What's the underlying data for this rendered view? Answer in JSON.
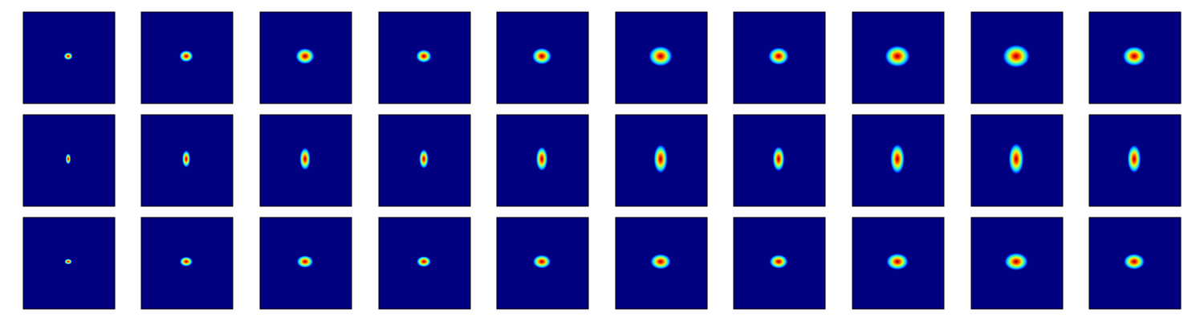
{
  "figure": {
    "rows": 3,
    "cols": 10,
    "colormap": "jet",
    "background_color": "#000080",
    "frame_color": "#000000",
    "blobs": [
      [
        {
          "size": 0.35,
          "shape": "round"
        },
        {
          "size": 0.55,
          "shape": "round"
        },
        {
          "size": 0.75,
          "shape": "round"
        },
        {
          "size": 0.62,
          "shape": "round"
        },
        {
          "size": 0.78,
          "shape": "round"
        },
        {
          "size": 0.95,
          "shape": "round"
        },
        {
          "size": 0.82,
          "shape": "round"
        },
        {
          "size": 1.0,
          "shape": "round"
        },
        {
          "size": 1.08,
          "shape": "round"
        },
        {
          "size": 0.92,
          "shape": "round"
        }
      ],
      [
        {
          "size": 0.35,
          "shape": "vertical"
        },
        {
          "size": 0.55,
          "shape": "vertical"
        },
        {
          "size": 0.72,
          "shape": "vertical"
        },
        {
          "size": 0.62,
          "shape": "vertical"
        },
        {
          "size": 0.78,
          "shape": "vertical"
        },
        {
          "size": 0.92,
          "shape": "vertical"
        },
        {
          "size": 0.8,
          "shape": "vertical"
        },
        {
          "size": 0.95,
          "shape": "vertical"
        },
        {
          "size": 1.0,
          "shape": "vertical"
        },
        {
          "size": 0.9,
          "shape": "vertical"
        }
      ],
      [
        {
          "size": 0.3,
          "shape": "flat"
        },
        {
          "size": 0.52,
          "shape": "flat"
        },
        {
          "size": 0.66,
          "shape": "flat"
        },
        {
          "size": 0.58,
          "shape": "flat"
        },
        {
          "size": 0.72,
          "shape": "flat"
        },
        {
          "size": 0.82,
          "shape": "flat"
        },
        {
          "size": 0.74,
          "shape": "flat"
        },
        {
          "size": 0.88,
          "shape": "flat"
        },
        {
          "size": 0.94,
          "shape": "flat"
        },
        {
          "size": 0.84,
          "shape": "flat"
        }
      ]
    ]
  }
}
